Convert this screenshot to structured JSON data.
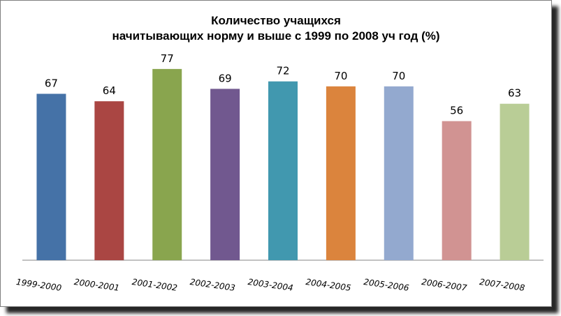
{
  "chart_data": {
    "type": "bar",
    "title_line1": "Количество  учащихся",
    "title_line2": "начитывающих норму и выше  с  1999 по 2008 уч год (%)",
    "categories": [
      "1999-2000",
      "2000-2001",
      "2001-2002",
      "2002-2003",
      "2003-2004",
      "2004-2005",
      "2005-2006",
      "2006-2007",
      "2007-2008"
    ],
    "values": [
      67,
      64,
      77,
      69,
      72,
      70,
      70,
      56,
      63
    ],
    "colors": [
      "#4572A7",
      "#AA4643",
      "#89A54E",
      "#71588F",
      "#4198AF",
      "#DB843D",
      "#93A9CF",
      "#D19392",
      "#B9CD96"
    ],
    "ylim": [
      0,
      80
    ],
    "grid": false,
    "legend": "none"
  }
}
